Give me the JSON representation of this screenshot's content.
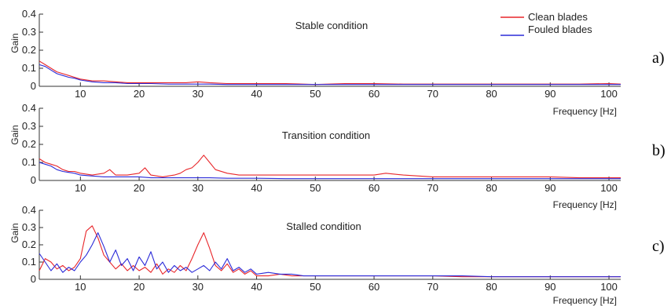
{
  "legend": {
    "clean_label": "Clean blades",
    "fouled_label": "Fouled blades"
  },
  "colors": {
    "clean": "#e8262a",
    "fouled": "#2b2bd8"
  },
  "chart_data": [
    {
      "type": "line",
      "panel": "a)",
      "title": "Stable condition",
      "xlabel": "Frequency [Hz]",
      "ylabel": "Gain",
      "xlim": [
        3,
        102
      ],
      "ylim": [
        0,
        0.4
      ],
      "xticks": [
        10,
        20,
        30,
        40,
        50,
        60,
        70,
        80,
        90,
        100
      ],
      "yticks": [
        0,
        0.1,
        0.2,
        0.3,
        0.4
      ],
      "ytick_labels": [
        "0",
        "0.1",
        "0.2",
        "0.3",
        "0.4"
      ],
      "series": [
        {
          "name": "Clean blades",
          "color": "#e8262a",
          "x": [
            3,
            4,
            5,
            6,
            7,
            8,
            9,
            10,
            12,
            14,
            16,
            18,
            20,
            22,
            25,
            28,
            30,
            32,
            35,
            40,
            45,
            50,
            55,
            60,
            65,
            70,
            75,
            80,
            85,
            90,
            95,
            100,
            102
          ],
          "y": [
            0.14,
            0.12,
            0.1,
            0.08,
            0.07,
            0.06,
            0.05,
            0.04,
            0.03,
            0.03,
            0.025,
            0.02,
            0.02,
            0.02,
            0.02,
            0.02,
            0.025,
            0.02,
            0.015,
            0.015,
            0.015,
            0.01,
            0.015,
            0.015,
            0.012,
            0.012,
            0.012,
            0.012,
            0.012,
            0.012,
            0.012,
            0.015,
            0.012
          ]
        },
        {
          "name": "Fouled blades",
          "color": "#2b2bd8",
          "x": [
            3,
            4,
            5,
            6,
            7,
            8,
            9,
            10,
            12,
            14,
            16,
            18,
            20,
            22,
            25,
            28,
            30,
            32,
            35,
            40,
            45,
            50,
            55,
            60,
            65,
            70,
            75,
            80,
            85,
            90,
            95,
            100,
            102
          ],
          "y": [
            0.12,
            0.11,
            0.09,
            0.07,
            0.06,
            0.05,
            0.045,
            0.035,
            0.025,
            0.02,
            0.02,
            0.015,
            0.015,
            0.015,
            0.012,
            0.012,
            0.012,
            0.012,
            0.01,
            0.01,
            0.01,
            0.01,
            0.01,
            0.01,
            0.01,
            0.01,
            0.01,
            0.01,
            0.01,
            0.01,
            0.01,
            0.01,
            0.01
          ]
        }
      ]
    },
    {
      "type": "line",
      "panel": "b)",
      "title": "Transition condition",
      "xlabel": "Frequency [Hz]",
      "ylabel": "Gain",
      "xlim": [
        3,
        102
      ],
      "ylim": [
        0,
        0.4
      ],
      "xticks": [
        10,
        20,
        30,
        40,
        50,
        60,
        70,
        80,
        90,
        100
      ],
      "yticks": [
        0,
        0.1,
        0.2,
        0.3,
        0.4
      ],
      "ytick_labels": [
        "0",
        "0.1",
        "0.2",
        "0.3",
        "0.4"
      ],
      "series": [
        {
          "name": "Clean blades",
          "color": "#e8262a",
          "x": [
            3,
            4,
            5,
            6,
            7,
            8,
            9,
            10,
            12,
            14,
            15,
            16,
            18,
            20,
            21,
            22,
            24,
            26,
            27,
            28,
            29,
            30,
            31,
            32,
            33,
            35,
            37,
            40,
            45,
            50,
            55,
            60,
            62,
            65,
            70,
            75,
            80,
            85,
            90,
            95,
            100,
            102
          ],
          "y": [
            0.12,
            0.1,
            0.09,
            0.08,
            0.06,
            0.05,
            0.05,
            0.04,
            0.03,
            0.04,
            0.06,
            0.03,
            0.03,
            0.04,
            0.07,
            0.03,
            0.02,
            0.03,
            0.04,
            0.06,
            0.07,
            0.1,
            0.14,
            0.1,
            0.06,
            0.04,
            0.03,
            0.03,
            0.03,
            0.03,
            0.03,
            0.03,
            0.04,
            0.03,
            0.02,
            0.02,
            0.02,
            0.02,
            0.02,
            0.015,
            0.015,
            0.015
          ]
        },
        {
          "name": "Fouled blades",
          "color": "#2b2bd8",
          "x": [
            3,
            4,
            5,
            6,
            7,
            8,
            9,
            10,
            12,
            14,
            16,
            18,
            20,
            22,
            25,
            28,
            30,
            32,
            35,
            40,
            45,
            50,
            55,
            60,
            65,
            70,
            75,
            80,
            85,
            90,
            95,
            100,
            102
          ],
          "y": [
            0.1,
            0.09,
            0.08,
            0.06,
            0.05,
            0.045,
            0.04,
            0.03,
            0.025,
            0.02,
            0.02,
            0.02,
            0.02,
            0.015,
            0.015,
            0.015,
            0.015,
            0.015,
            0.012,
            0.012,
            0.01,
            0.01,
            0.01,
            0.01,
            0.01,
            0.01,
            0.01,
            0.01,
            0.01,
            0.01,
            0.01,
            0.01,
            0.01
          ]
        }
      ]
    },
    {
      "type": "line",
      "panel": "c)",
      "title": "Stalled condition",
      "xlabel": "Frequency [Hz]",
      "ylabel": "Gain",
      "xlim": [
        3,
        102
      ],
      "ylim": [
        0,
        0.4
      ],
      "xticks": [
        10,
        20,
        30,
        40,
        50,
        60,
        70,
        80,
        90,
        100
      ],
      "yticks": [
        0,
        0.1,
        0.2,
        0.3,
        0.4
      ],
      "ytick_labels": [
        "0",
        "0.1",
        "0.2",
        "0.3",
        "0.4"
      ],
      "series": [
        {
          "name": "Clean blades",
          "color": "#e8262a",
          "x": [
            3,
            4,
            5,
            6,
            7,
            8,
            9,
            10,
            11,
            12,
            13,
            14,
            15,
            16,
            17,
            18,
            19,
            20,
            21,
            22,
            23,
            24,
            25,
            26,
            27,
            28,
            29,
            30,
            31,
            32,
            33,
            34,
            35,
            36,
            37,
            38,
            39,
            40,
            42,
            44,
            46,
            48,
            50,
            55,
            60,
            65,
            70,
            75,
            80,
            85,
            90,
            95,
            100,
            102
          ],
          "y": [
            0.05,
            0.12,
            0.1,
            0.06,
            0.08,
            0.05,
            0.07,
            0.12,
            0.28,
            0.31,
            0.24,
            0.14,
            0.1,
            0.06,
            0.09,
            0.05,
            0.08,
            0.05,
            0.07,
            0.04,
            0.09,
            0.03,
            0.06,
            0.04,
            0.08,
            0.05,
            0.12,
            0.2,
            0.27,
            0.18,
            0.08,
            0.05,
            0.09,
            0.04,
            0.06,
            0.03,
            0.05,
            0.02,
            0.02,
            0.03,
            0.02,
            0.02,
            0.02,
            0.02,
            0.02,
            0.02,
            0.02,
            0.015,
            0.015,
            0.015,
            0.015,
            0.015,
            0.015,
            0.015
          ]
        },
        {
          "name": "Fouled blades",
          "color": "#2b2bd8",
          "x": [
            3,
            4,
            5,
            6,
            7,
            8,
            9,
            10,
            11,
            12,
            13,
            14,
            15,
            16,
            17,
            18,
            19,
            20,
            21,
            22,
            23,
            24,
            25,
            26,
            27,
            28,
            29,
            30,
            31,
            32,
            33,
            34,
            35,
            36,
            37,
            38,
            39,
            40,
            42,
            44,
            46,
            48,
            50,
            55,
            60,
            65,
            70,
            75,
            80,
            85,
            90,
            95,
            100,
            102
          ],
          "y": [
            0.15,
            0.1,
            0.05,
            0.09,
            0.04,
            0.07,
            0.05,
            0.1,
            0.14,
            0.2,
            0.27,
            0.19,
            0.1,
            0.17,
            0.08,
            0.12,
            0.05,
            0.13,
            0.08,
            0.16,
            0.06,
            0.1,
            0.04,
            0.08,
            0.05,
            0.07,
            0.04,
            0.06,
            0.08,
            0.05,
            0.1,
            0.06,
            0.12,
            0.05,
            0.07,
            0.04,
            0.06,
            0.03,
            0.04,
            0.03,
            0.03,
            0.02,
            0.02,
            0.02,
            0.02,
            0.02,
            0.02,
            0.02,
            0.015,
            0.015,
            0.015,
            0.015,
            0.015,
            0.015
          ]
        }
      ]
    }
  ]
}
